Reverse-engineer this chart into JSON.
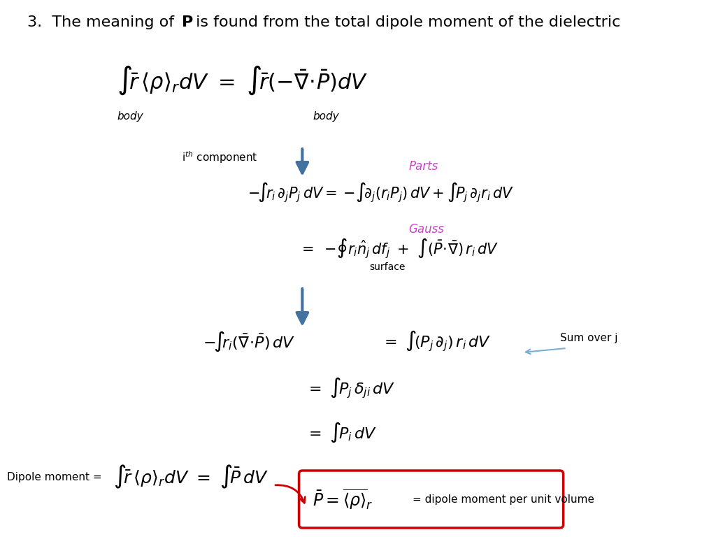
{
  "background_color": "#ffffff",
  "title_fontsize": 16,
  "math_fontsize_large": 22,
  "math_fontsize_med": 15,
  "math_fontsize_small": 14,
  "label_fontsize": 11,
  "parts_color": "#cc44cc",
  "gauss_color": "#cc44cc",
  "arrow_color": "#4472a0",
  "red_color": "#cc0000",
  "black": "#000000",
  "body_label": "body",
  "ith_label": "i",
  "th_label": "th",
  "component_label": " component",
  "parts_label": "Parts",
  "gauss_label": "Gauss",
  "surface_label": "surface",
  "sum_over_j_label": "Sum over j",
  "dipole_moment_label": "Dipole moment =",
  "dipole_per_unit": "= dipole moment per unit volume"
}
